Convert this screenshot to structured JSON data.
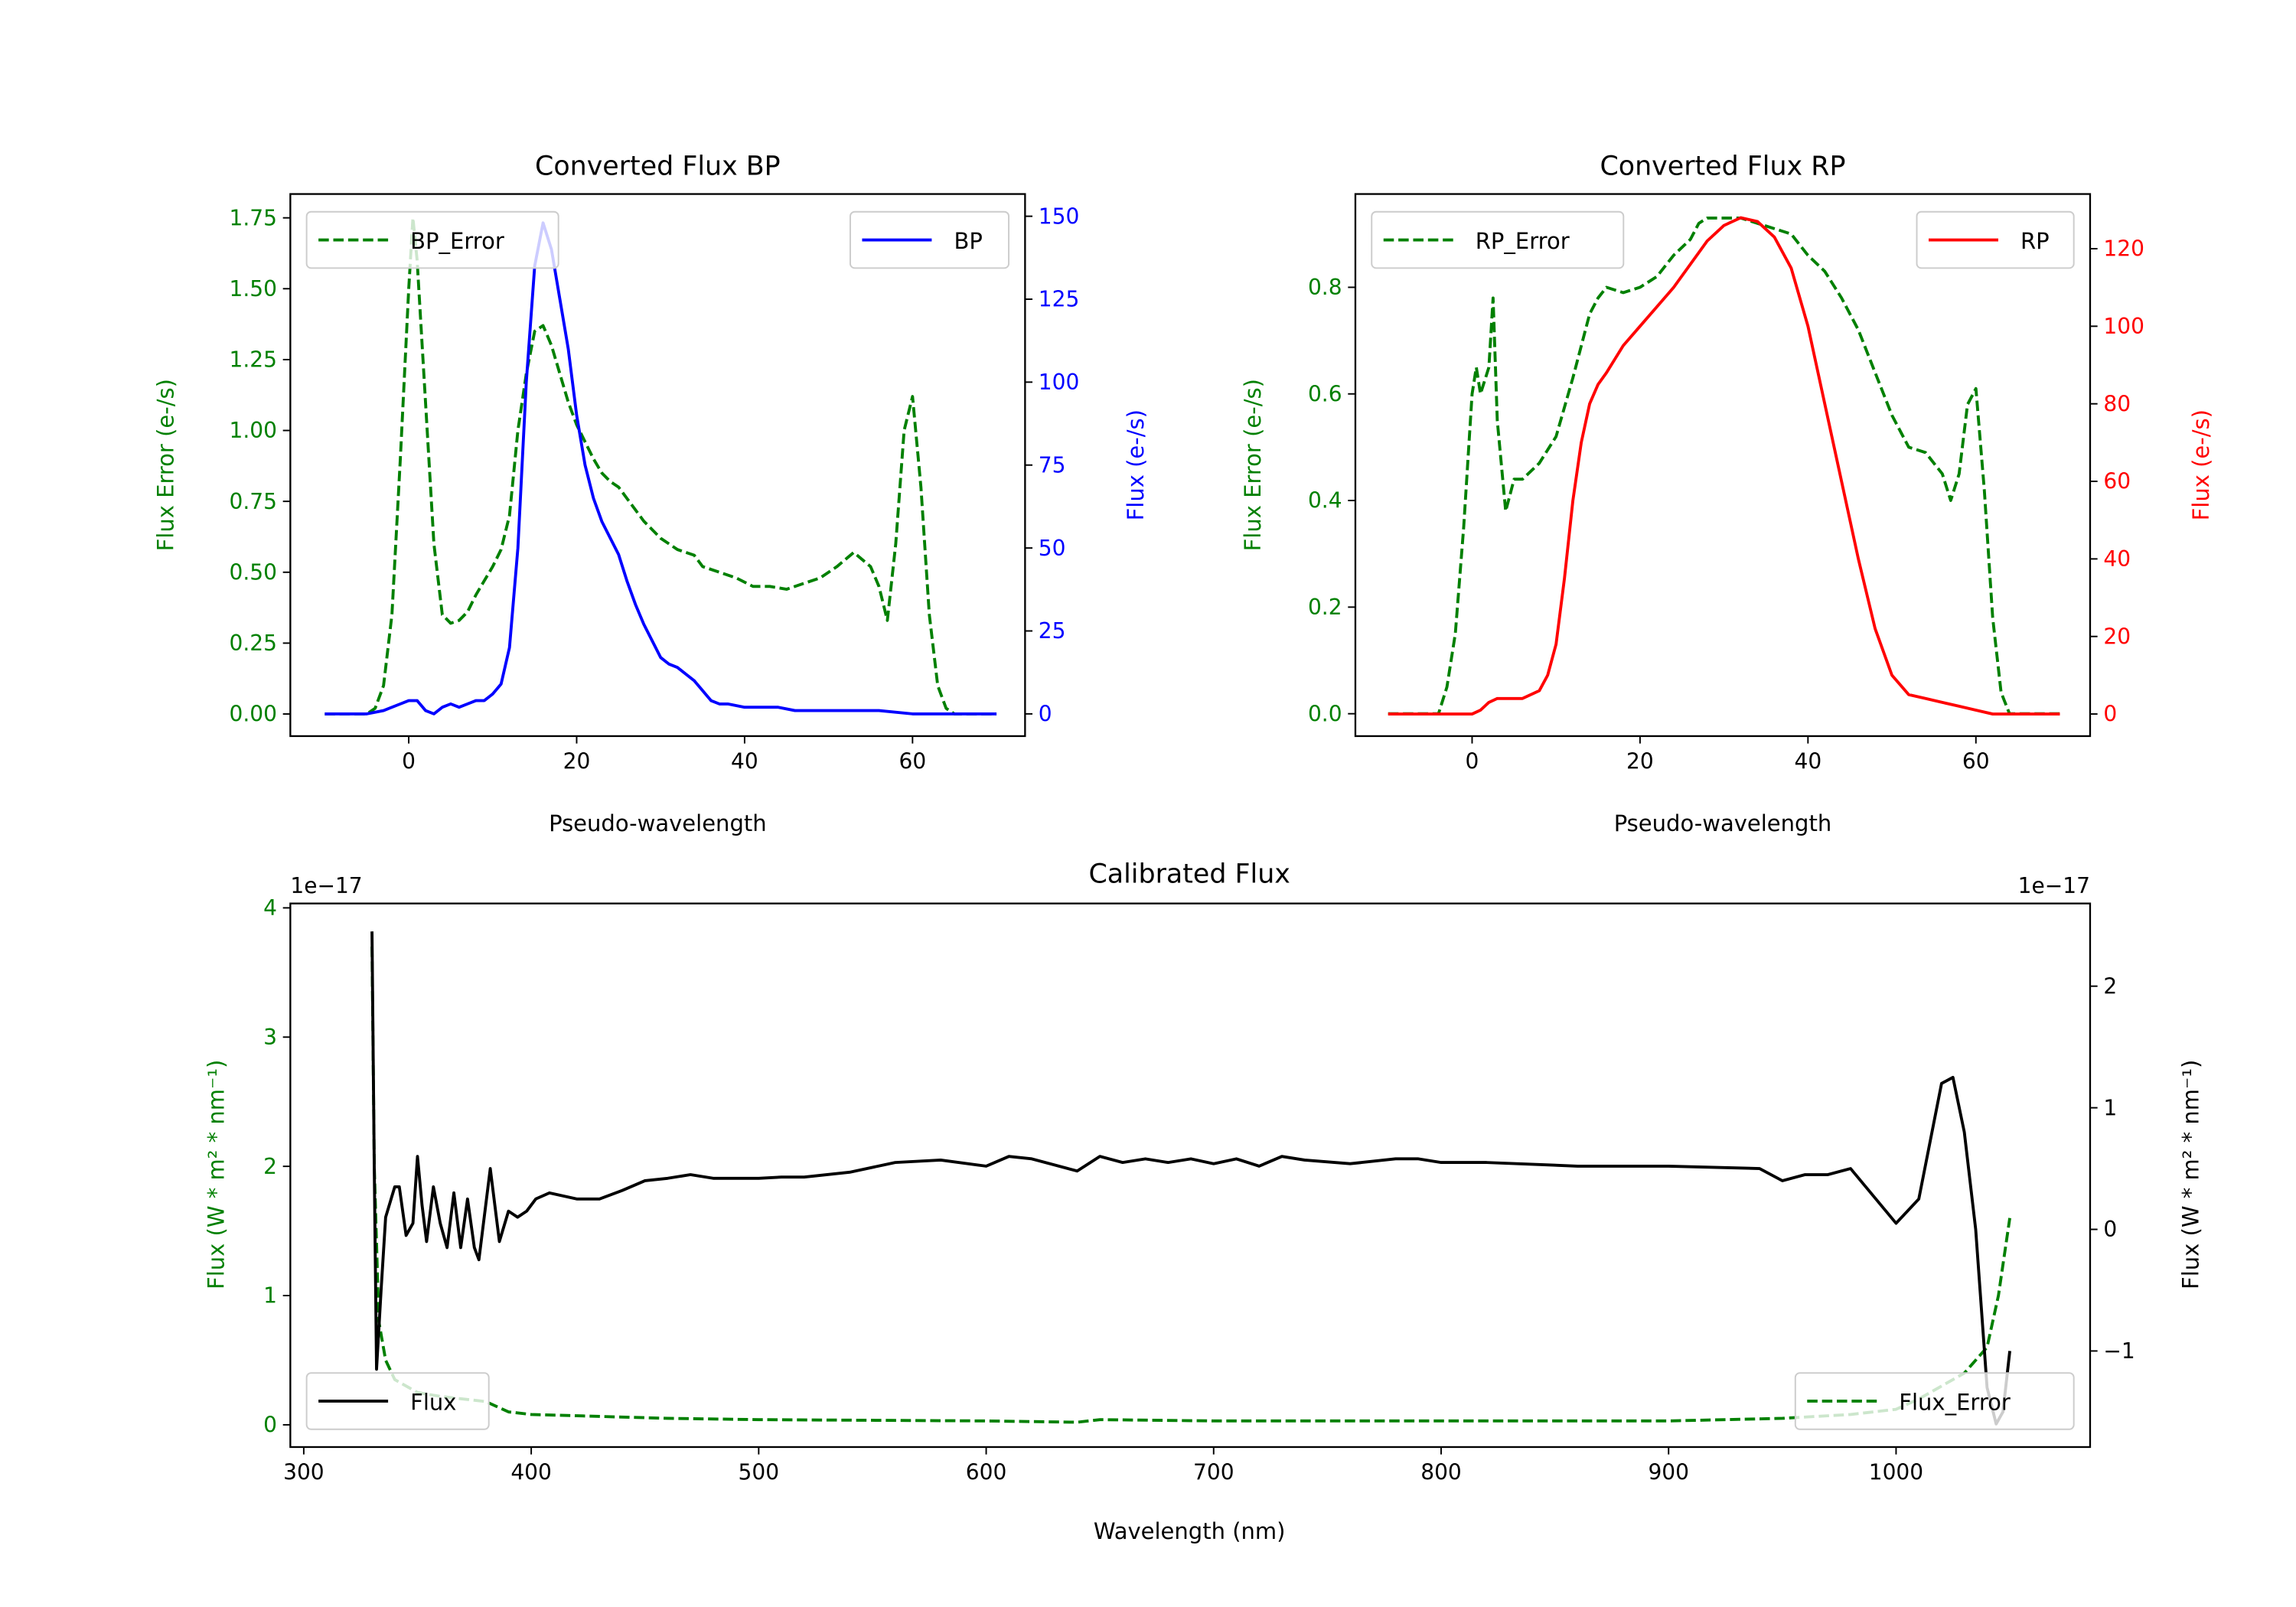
{
  "colors": {
    "bp": "#0000ff",
    "rp": "#ff0000",
    "err": "#008000",
    "flux": "#000000"
  },
  "chart_data": [
    {
      "type": "line",
      "title": "Converted Flux BP",
      "xlabel": "Pseudo-wavelength",
      "ylabel_left": "Flux Error (e-/s)",
      "ylabel_right": "Flux (e-/s)",
      "xlim": [
        -14.1,
        73.4
      ],
      "ylim_left": [
        -0.078,
        1.834
      ],
      "ylim_right": [
        -6.7,
        156.7
      ],
      "xticks": [
        0,
        20,
        40,
        60
      ],
      "yticks_left": [
        "0.00",
        "0.25",
        "0.50",
        "0.75",
        "1.00",
        "1.25",
        "1.50",
        "1.75"
      ],
      "yticks_right": [
        "0",
        "25",
        "50",
        "75",
        "100",
        "125",
        "150"
      ],
      "legend_left": "top-left",
      "legend_right": "top-right",
      "series": [
        {
          "name": "BP_Error",
          "axis": "left",
          "style": "dashed",
          "color": "#008000",
          "x": [
            -10,
            -5,
            -4,
            -3,
            -2,
            -1,
            0,
            0.5,
            1,
            2,
            3,
            4,
            5,
            6,
            7,
            8,
            9,
            10,
            11,
            12,
            13,
            14,
            15,
            16,
            17,
            18,
            19,
            20,
            21,
            22,
            23,
            24,
            25,
            26,
            28,
            30,
            32,
            34,
            35,
            37,
            39,
            41,
            43,
            45,
            47,
            49,
            51,
            53,
            55,
            56,
            57,
            58,
            59,
            60,
            61,
            62,
            63,
            64,
            65,
            70
          ],
          "y": [
            0,
            0,
            0.02,
            0.1,
            0.35,
            0.9,
            1.5,
            1.75,
            1.6,
            1.1,
            0.6,
            0.35,
            0.32,
            0.33,
            0.36,
            0.42,
            0.47,
            0.52,
            0.58,
            0.7,
            1.0,
            1.2,
            1.35,
            1.37,
            1.3,
            1.2,
            1.1,
            1.02,
            0.96,
            0.9,
            0.85,
            0.82,
            0.8,
            0.76,
            0.68,
            0.62,
            0.58,
            0.56,
            0.52,
            0.5,
            0.48,
            0.45,
            0.45,
            0.44,
            0.46,
            0.48,
            0.52,
            0.57,
            0.52,
            0.45,
            0.33,
            0.6,
            1.0,
            1.12,
            0.8,
            0.35,
            0.1,
            0.02,
            0,
            0
          ]
        },
        {
          "name": "BP",
          "axis": "right",
          "style": "solid",
          "color": "#0000ff",
          "x": [
            -10,
            -5,
            -3,
            -1,
            0,
            1,
            2,
            3,
            4,
            5,
            6,
            7,
            8,
            9,
            10,
            11,
            12,
            13,
            14,
            15,
            16,
            17,
            18,
            19,
            20,
            21,
            22,
            23,
            24,
            25,
            26,
            27,
            28,
            29,
            30,
            31,
            32,
            33,
            34,
            35,
            36,
            37,
            38,
            40,
            42,
            44,
            46,
            48,
            50,
            52,
            54,
            56,
            60,
            65,
            70
          ],
          "y": [
            0,
            0,
            1,
            3,
            4,
            4,
            1,
            0,
            2,
            3,
            2,
            3,
            4,
            4,
            6,
            9,
            20,
            50,
            100,
            135,
            148,
            140,
            125,
            110,
            90,
            75,
            65,
            58,
            53,
            48,
            40,
            33,
            27,
            22,
            17,
            15,
            14,
            12,
            10,
            7,
            4,
            3,
            3,
            2,
            2,
            2,
            1,
            1,
            1,
            1,
            1,
            1,
            0,
            0,
            0
          ]
        }
      ]
    },
    {
      "type": "line",
      "title": "Converted Flux RP",
      "xlabel": "Pseudo-wavelength",
      "ylabel_left": "Flux Error (e-/s)",
      "ylabel_right": "Flux (e-/s)",
      "xlim": [
        -13.9,
        73.6
      ],
      "ylim_left": [
        -0.042,
        0.975
      ],
      "ylim_right": [
        -5.7,
        134.1
      ],
      "xticks": [
        0,
        20,
        40,
        60
      ],
      "yticks_left": [
        "0.0",
        "0.2",
        "0.4",
        "0.6",
        "0.8"
      ],
      "yticks_right": [
        "0",
        "20",
        "40",
        "60",
        "80",
        "100",
        "120"
      ],
      "legend_left": "top-left",
      "legend_right": "top-right",
      "series": [
        {
          "name": "RP_Error",
          "axis": "left",
          "style": "dashed",
          "color": "#008000",
          "x": [
            -10,
            -4,
            -3,
            -2,
            -1,
            0,
            0.5,
            1,
            2,
            2.5,
            3,
            4,
            5,
            6,
            8,
            10,
            12,
            14,
            15,
            16,
            18,
            20,
            22,
            24,
            26,
            27,
            28,
            30,
            32,
            34,
            36,
            38,
            40,
            42,
            44,
            46,
            48,
            50,
            52,
            54,
            56,
            57,
            58,
            59,
            60,
            61,
            62,
            63,
            64,
            70
          ],
          "y": [
            0,
            0,
            0.05,
            0.15,
            0.35,
            0.6,
            0.65,
            0.6,
            0.65,
            0.78,
            0.55,
            0.38,
            0.44,
            0.44,
            0.47,
            0.52,
            0.63,
            0.75,
            0.78,
            0.8,
            0.79,
            0.8,
            0.82,
            0.86,
            0.89,
            0.92,
            0.93,
            0.93,
            0.93,
            0.92,
            0.91,
            0.9,
            0.86,
            0.83,
            0.78,
            0.72,
            0.64,
            0.56,
            0.5,
            0.49,
            0.45,
            0.4,
            0.45,
            0.58,
            0.61,
            0.42,
            0.18,
            0.04,
            0,
            0
          ]
        },
        {
          "name": "RP",
          "axis": "right",
          "style": "solid",
          "color": "#ff0000",
          "x": [
            -10,
            -5,
            0,
            1,
            2,
            3,
            4,
            6,
            8,
            9,
            10,
            11,
            12,
            13,
            14,
            15,
            16,
            18,
            20,
            22,
            24,
            26,
            28,
            30,
            31,
            32,
            34,
            36,
            38,
            40,
            42,
            44,
            46,
            48,
            50,
            52,
            54,
            56,
            58,
            60,
            62,
            70
          ],
          "y": [
            0,
            0,
            0,
            1,
            3,
            4,
            4,
            4,
            6,
            10,
            18,
            35,
            55,
            70,
            80,
            85,
            88,
            95,
            100,
            105,
            110,
            116,
            122,
            126,
            127,
            128,
            127,
            123,
            115,
            100,
            80,
            60,
            40,
            22,
            10,
            5,
            4,
            3,
            2,
            1,
            0,
            0
          ]
        }
      ]
    },
    {
      "type": "line",
      "title": "Calibrated Flux",
      "xlabel": "Wavelength (nm)",
      "ylabel_left": "Flux (W * m² * nm⁻¹)",
      "ylabel_right": "Flux (W * m² * nm⁻¹)",
      "offset_left": "1e−17",
      "offset_right": "1e−17",
      "xlim": [
        294.1,
        1085.3
      ],
      "ylim_left": [
        -0.172,
        4.034
      ],
      "ylim_right": [
        -1.79,
        2.68
      ],
      "xticks": [
        300,
        400,
        500,
        600,
        700,
        800,
        900,
        1000
      ],
      "yticks_left": [
        "0",
        "1",
        "2",
        "3",
        "4"
      ],
      "yticks_right": [
        "−1",
        "0",
        "1",
        "2"
      ],
      "legend_left": "lower-left",
      "legend_right": "lower-right",
      "series": [
        {
          "name": "Flux",
          "axis": "right",
          "style": "solid",
          "color": "#000000",
          "x": [
            330,
            331,
            332,
            334,
            336,
            340,
            342,
            345,
            348,
            350,
            352,
            354,
            357,
            360,
            363,
            366,
            369,
            372,
            375,
            377,
            380,
            382,
            384,
            386,
            390,
            394,
            398,
            402,
            408,
            420,
            430,
            440,
            450,
            460,
            470,
            480,
            500,
            510,
            520,
            540,
            560,
            580,
            600,
            610,
            620,
            640,
            650,
            660,
            670,
            680,
            690,
            700,
            710,
            720,
            730,
            740,
            760,
            780,
            790,
            800,
            820,
            860,
            900,
            940,
            950,
            960,
            970,
            980,
            1000,
            1010,
            1020,
            1025,
            1030,
            1035,
            1040,
            1044,
            1047,
            1050
          ],
          "y": [
            2.45,
            0.5,
            -1.15,
            -0.5,
            0.1,
            0.35,
            0.35,
            -0.05,
            0.05,
            0.6,
            0.2,
            -0.1,
            0.35,
            0.05,
            -0.15,
            0.3,
            -0.15,
            0.25,
            -0.15,
            -0.25,
            0.2,
            0.5,
            0.2,
            -0.1,
            0.15,
            0.1,
            0.15,
            0.25,
            0.3,
            0.25,
            0.25,
            0.32,
            0.4,
            0.42,
            0.45,
            0.42,
            0.42,
            0.43,
            0.43,
            0.47,
            0.55,
            0.57,
            0.52,
            0.6,
            0.58,
            0.48,
            0.6,
            0.55,
            0.58,
            0.55,
            0.58,
            0.54,
            0.58,
            0.52,
            0.6,
            0.57,
            0.54,
            0.58,
            0.58,
            0.55,
            0.55,
            0.52,
            0.52,
            0.5,
            0.4,
            0.45,
            0.45,
            0.5,
            0.05,
            0.25,
            1.2,
            1.25,
            0.8,
            0,
            -1.3,
            -1.6,
            -1.5,
            -1.0
          ]
        },
        {
          "name": "Flux_Error",
          "axis": "left",
          "style": "dashed",
          "color": "#008000",
          "x": [
            330,
            331,
            333,
            336,
            340,
            350,
            360,
            370,
            380,
            390,
            400,
            420,
            440,
            460,
            500,
            600,
            640,
            650,
            700,
            800,
            900,
            950,
            980,
            1000,
            1010,
            1020,
            1030,
            1040,
            1045,
            1050
          ],
          "y": [
            3.7,
            2.0,
            0.8,
            0.5,
            0.35,
            0.25,
            0.22,
            0.2,
            0.18,
            0.1,
            0.08,
            0.07,
            0.06,
            0.05,
            0.04,
            0.03,
            0.02,
            0.04,
            0.03,
            0.03,
            0.03,
            0.05,
            0.08,
            0.12,
            0.2,
            0.3,
            0.4,
            0.6,
            1.0,
            1.6
          ]
        }
      ]
    }
  ]
}
